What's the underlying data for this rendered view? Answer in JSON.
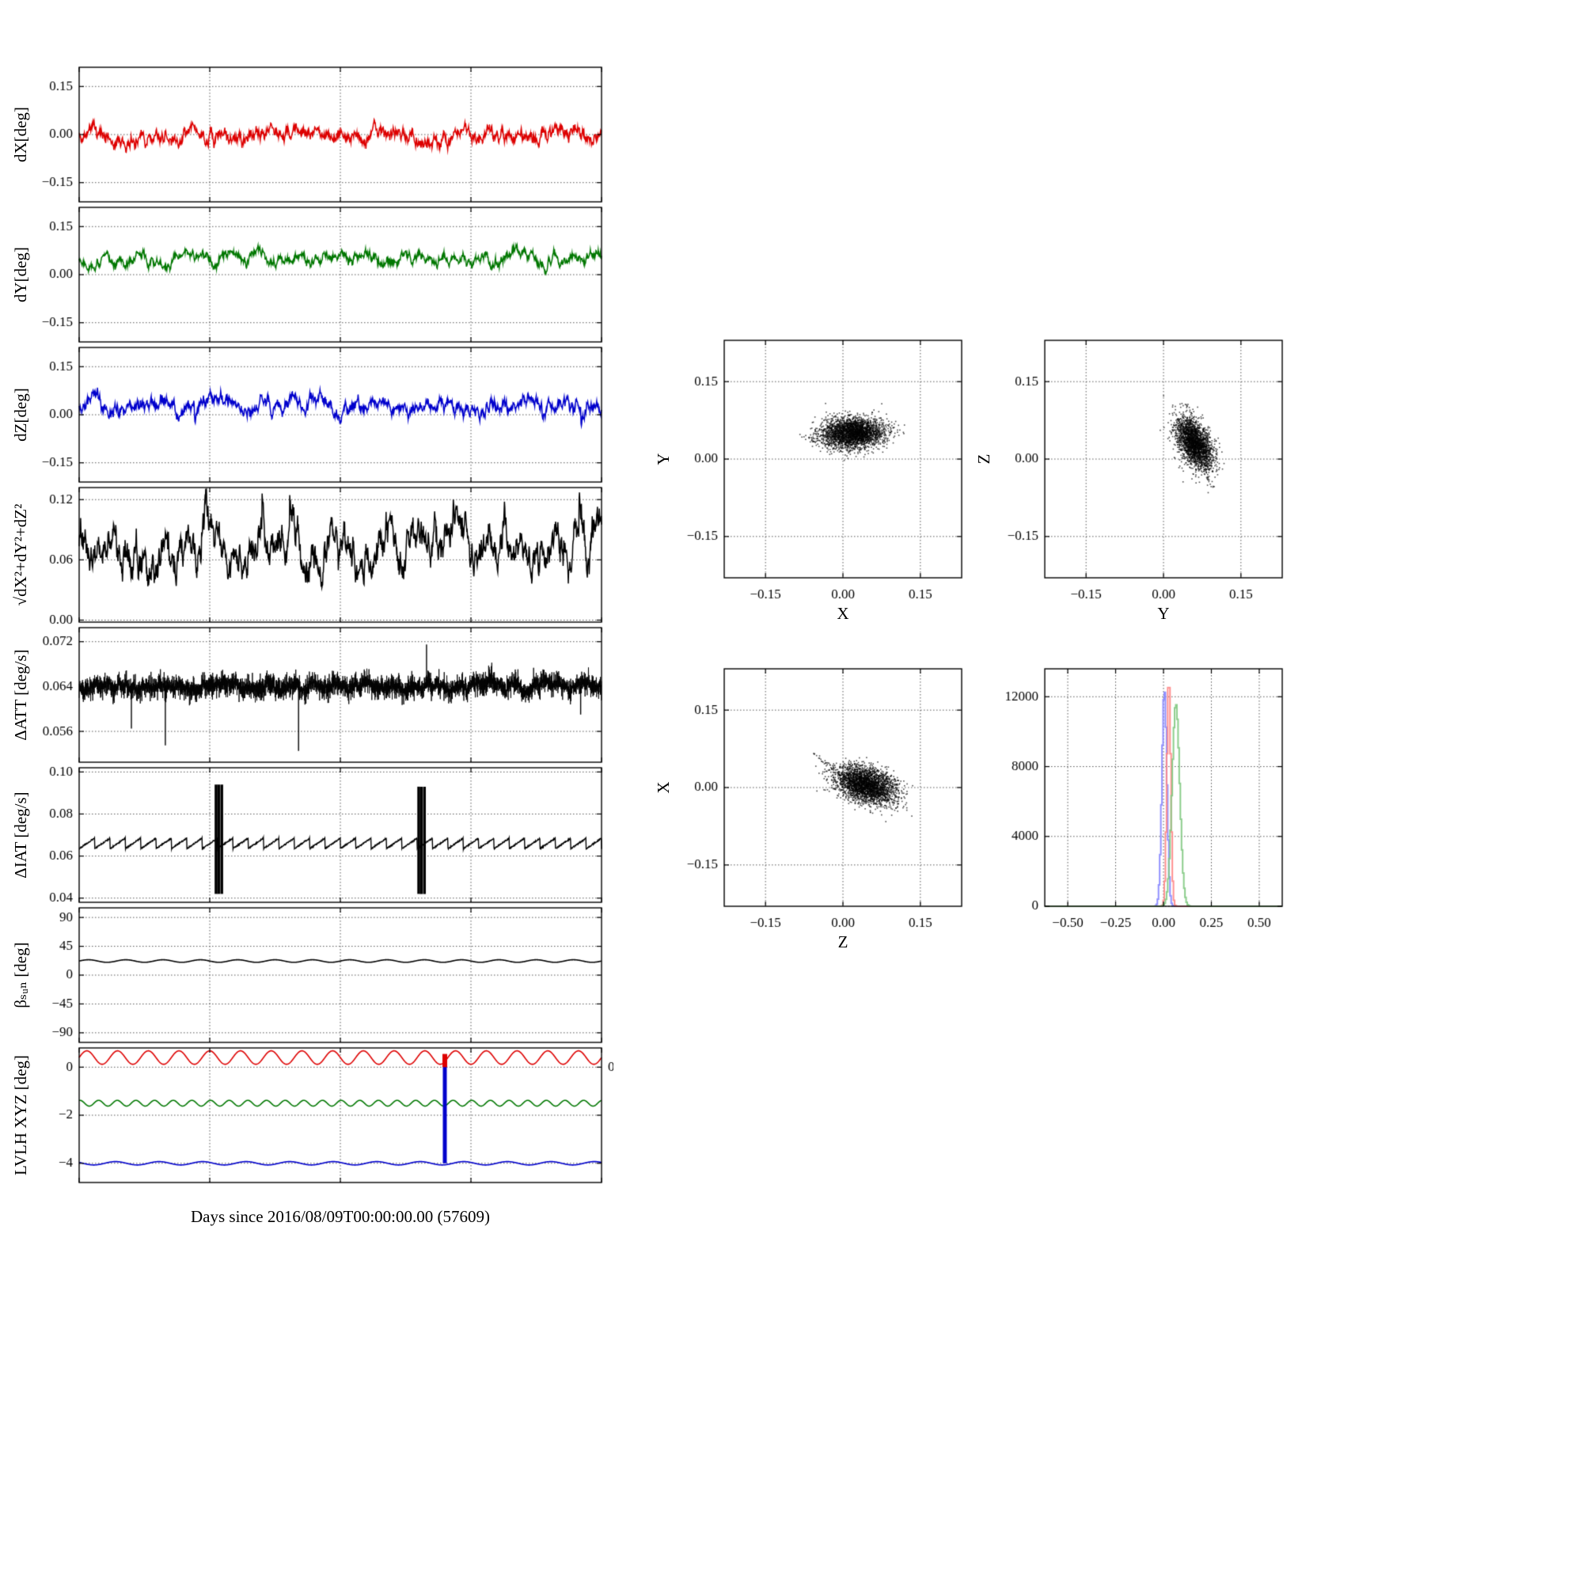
{
  "figure": {
    "background": "#ffffff",
    "xlabel_time": "Days since 2016/08/09T00:00:00.00 (57609)"
  },
  "chart_data": [
    {
      "id": "dX",
      "type": "line",
      "ylabel": "dX[deg]",
      "line_color": "#dd0000",
      "ylim": [
        -0.21,
        0.21
      ],
      "yticks": [
        0.15,
        0.0,
        -0.15
      ],
      "ytick_labels": [
        "0.15",
        "0.00",
        "−0.15"
      ],
      "xgrid": [
        0.25,
        0.5,
        0.75
      ],
      "series": {
        "kind": "wander",
        "mean": 0.0,
        "amp": 0.045,
        "jitter": 0.012,
        "dip_prob": 0.003,
        "dip_size": 0.04,
        "seed": 11
      }
    },
    {
      "id": "dY",
      "type": "line",
      "ylabel": "dY[deg]",
      "line_color": "#007700",
      "ylim": [
        -0.21,
        0.21
      ],
      "yticks": [
        0.15,
        0.0,
        -0.15
      ],
      "ytick_labels": [
        "0.15",
        "0.00",
        "−0.15"
      ],
      "xgrid": [
        0.25,
        0.5,
        0.75
      ],
      "series": {
        "kind": "wander",
        "mean": 0.05,
        "amp": 0.035,
        "jitter": 0.01,
        "seed": 22
      }
    },
    {
      "id": "dZ",
      "type": "line",
      "ylabel": "dZ[deg]",
      "line_color": "#0000cc",
      "ylim": [
        -0.21,
        0.21
      ],
      "yticks": [
        0.15,
        0.0,
        -0.15
      ],
      "ytick_labels": [
        "0.15",
        "0.00",
        "−0.15"
      ],
      "xgrid": [
        0.25,
        0.5,
        0.75
      ],
      "series": {
        "kind": "wander",
        "mean": 0.025,
        "amp": 0.045,
        "jitter": 0.012,
        "dip_prob": 0.004,
        "dip_size": 0.06,
        "seed": 33
      }
    },
    {
      "id": "magnitude",
      "type": "line",
      "ylabel": "√dX²+dY²+dZ²",
      "line_color": "#000000",
      "ylim": [
        -0.002,
        0.132
      ],
      "yticks": [
        0.12,
        0.06,
        0.0
      ],
      "ytick_labels": [
        "0.12",
        "0.06",
        "0.00"
      ],
      "xgrid": [
        0.25,
        0.5,
        0.75
      ],
      "series": {
        "kind": "wander",
        "mean": 0.07,
        "amp": 0.045,
        "jitter": 0.01,
        "min": 0.035,
        "spike_prob": 0.012,
        "spike_size": 0.035,
        "seed": 44
      }
    },
    {
      "id": "delta_att",
      "type": "line",
      "ylabel": "ΔATT [deg/s]",
      "line_color": "#000000",
      "ylim": [
        0.0505,
        0.0745
      ],
      "yticks": [
        0.072,
        0.064,
        0.056
      ],
      "ytick_labels": [
        "0.072",
        "0.064",
        "0.056"
      ],
      "xgrid": [
        0.25,
        0.5,
        0.75
      ],
      "series": {
        "kind": "spiky",
        "mean": 0.064,
        "spike": 0.0028,
        "outliers_down": [
          [
            0.1,
            0.0565
          ],
          [
            0.165,
            0.0535
          ],
          [
            0.42,
            0.0525
          ],
          [
            0.96,
            0.059
          ]
        ],
        "outliers_up": [
          [
            0.665,
            0.0715
          ]
        ],
        "seed": 55
      }
    },
    {
      "id": "delta_iat",
      "type": "line",
      "ylabel": "ΔIAT [deg/s]",
      "line_color": "#000000",
      "ylim": [
        0.038,
        0.102
      ],
      "yticks": [
        0.1,
        0.08,
        0.06,
        0.04
      ],
      "ytick_labels": [
        "0.10",
        "0.08",
        "0.06",
        "0.04"
      ],
      "xgrid": [
        0.25,
        0.5,
        0.75
      ],
      "series": {
        "kind": "sawtooth",
        "mean": 0.066,
        "amp": 0.005,
        "teeth": 34,
        "bursts": [
          {
            "t": 0.268,
            "lo": 0.042,
            "hi": 0.094
          },
          {
            "t": 0.656,
            "lo": 0.042,
            "hi": 0.093
          }
        ],
        "seed": 66
      }
    },
    {
      "id": "beta_sun",
      "type": "line",
      "ylabel": "βₛᵤₙ [deg]",
      "line_color": "#000000",
      "ylim": [
        -105,
        105
      ],
      "yticks": [
        90,
        45,
        0,
        -45,
        -90
      ],
      "ytick_labels": [
        "90",
        "45",
        "0",
        "−45",
        "−90"
      ],
      "xgrid": [
        0.25,
        0.5,
        0.75
      ],
      "series": {
        "kind": "sine",
        "mean": 22,
        "amp": 2,
        "cycles": 14,
        "seed": 77
      }
    },
    {
      "id": "lvlh_xyz",
      "type": "line",
      "ylabel": "LVLH XYZ [deg]",
      "ylim": [
        -4.8,
        0.8
      ],
      "yticks": [
        0,
        -2,
        -4
      ],
      "ytick_labels": [
        "0",
        "−2",
        "−4"
      ],
      "right_ytick_label": "0",
      "xgrid": [
        0.25,
        0.5,
        0.75
      ],
      "series_multi": [
        {
          "name": "X",
          "color": "#dd0000",
          "mean": 0.4,
          "amp": 0.28,
          "cycles": 17
        },
        {
          "name": "Y",
          "color": "#007700",
          "mean": -1.5,
          "amp": 0.12,
          "cycles": 28
        },
        {
          "name": "Z",
          "color": "#0000cc",
          "mean": -4.0,
          "amp": 0.07,
          "cycles": 12
        }
      ],
      "spike": {
        "t": 0.7,
        "blue_from": -4.0,
        "blue_to": 0.1,
        "red_from": 0.55,
        "red_to": 0.0
      }
    },
    {
      "id": "scatter_xy",
      "type": "scatter",
      "xlabel": "X",
      "ylabel": "Y",
      "xlim": [
        -0.23,
        0.23
      ],
      "ylim": [
        -0.23,
        0.23
      ],
      "ticks": [
        -0.15,
        0.0,
        0.15
      ],
      "tick_labels": [
        "−0.15",
        "0.00",
        "0.15"
      ],
      "cluster": {
        "cx": 0.02,
        "cy": 0.05,
        "sx": 0.03,
        "sy": 0.015,
        "rho": 0.05,
        "n": 2800,
        "seed": 101
      },
      "streaks": [
        {
          "x1": -0.01,
          "y1": 0.05,
          "x2": -0.06,
          "y2": 0.035,
          "n": 30
        }
      ]
    },
    {
      "id": "scatter_yz",
      "type": "scatter",
      "xlabel": "Y",
      "ylabel": "Z",
      "xlim": [
        -0.23,
        0.23
      ],
      "ylim": [
        -0.23,
        0.23
      ],
      "ticks": [
        -0.15,
        0.0,
        0.15
      ],
      "tick_labels": [
        "−0.15",
        "0.00",
        "0.15"
      ],
      "cluster": {
        "cx": 0.06,
        "cy": 0.03,
        "sx": 0.018,
        "sy": 0.025,
        "rho": -0.5,
        "n": 2400,
        "seed": 102
      },
      "streaks": [
        {
          "x1": 0.07,
          "y1": 0.0,
          "x2": 0.095,
          "y2": -0.055,
          "n": 30
        }
      ]
    },
    {
      "id": "scatter_zx",
      "type": "scatter",
      "xlabel": "Z",
      "ylabel": "X",
      "xlim": [
        -0.23,
        0.23
      ],
      "ylim": [
        -0.23,
        0.23
      ],
      "ticks": [
        -0.15,
        0.0,
        0.15
      ],
      "tick_labels": [
        "−0.15",
        "0.00",
        "0.15"
      ],
      "cluster": {
        "cx": 0.045,
        "cy": 0.005,
        "sx": 0.028,
        "sy": 0.018,
        "rho": -0.35,
        "n": 2800,
        "seed": 103
      },
      "streaks": [
        {
          "x1": 0.02,
          "y1": 0.01,
          "x2": -0.055,
          "y2": 0.065,
          "n": 40
        }
      ]
    },
    {
      "id": "histogram",
      "type": "histogram",
      "xlim": [
        -0.62,
        0.62
      ],
      "ylim": [
        0,
        13600
      ],
      "xticks": [
        -0.5,
        -0.25,
        0.0,
        0.25,
        0.5
      ],
      "xtick_labels": [
        "−0.50",
        "−0.25",
        "0.00",
        "0.25",
        "0.50"
      ],
      "yticks": [
        0,
        4000,
        8000,
        12000
      ],
      "ytick_labels": [
        "0",
        "4000",
        "8000",
        "12000"
      ],
      "series": [
        {
          "color": "#8585ff",
          "mean": 0.005,
          "sigma": 0.013,
          "peak": 12400
        },
        {
          "color": "#ff8585",
          "mean": 0.028,
          "sigma": 0.01,
          "peak": 13100
        },
        {
          "color": "#7fc87f",
          "mean": 0.065,
          "sigma": 0.02,
          "peak": 11600
        }
      ]
    }
  ]
}
